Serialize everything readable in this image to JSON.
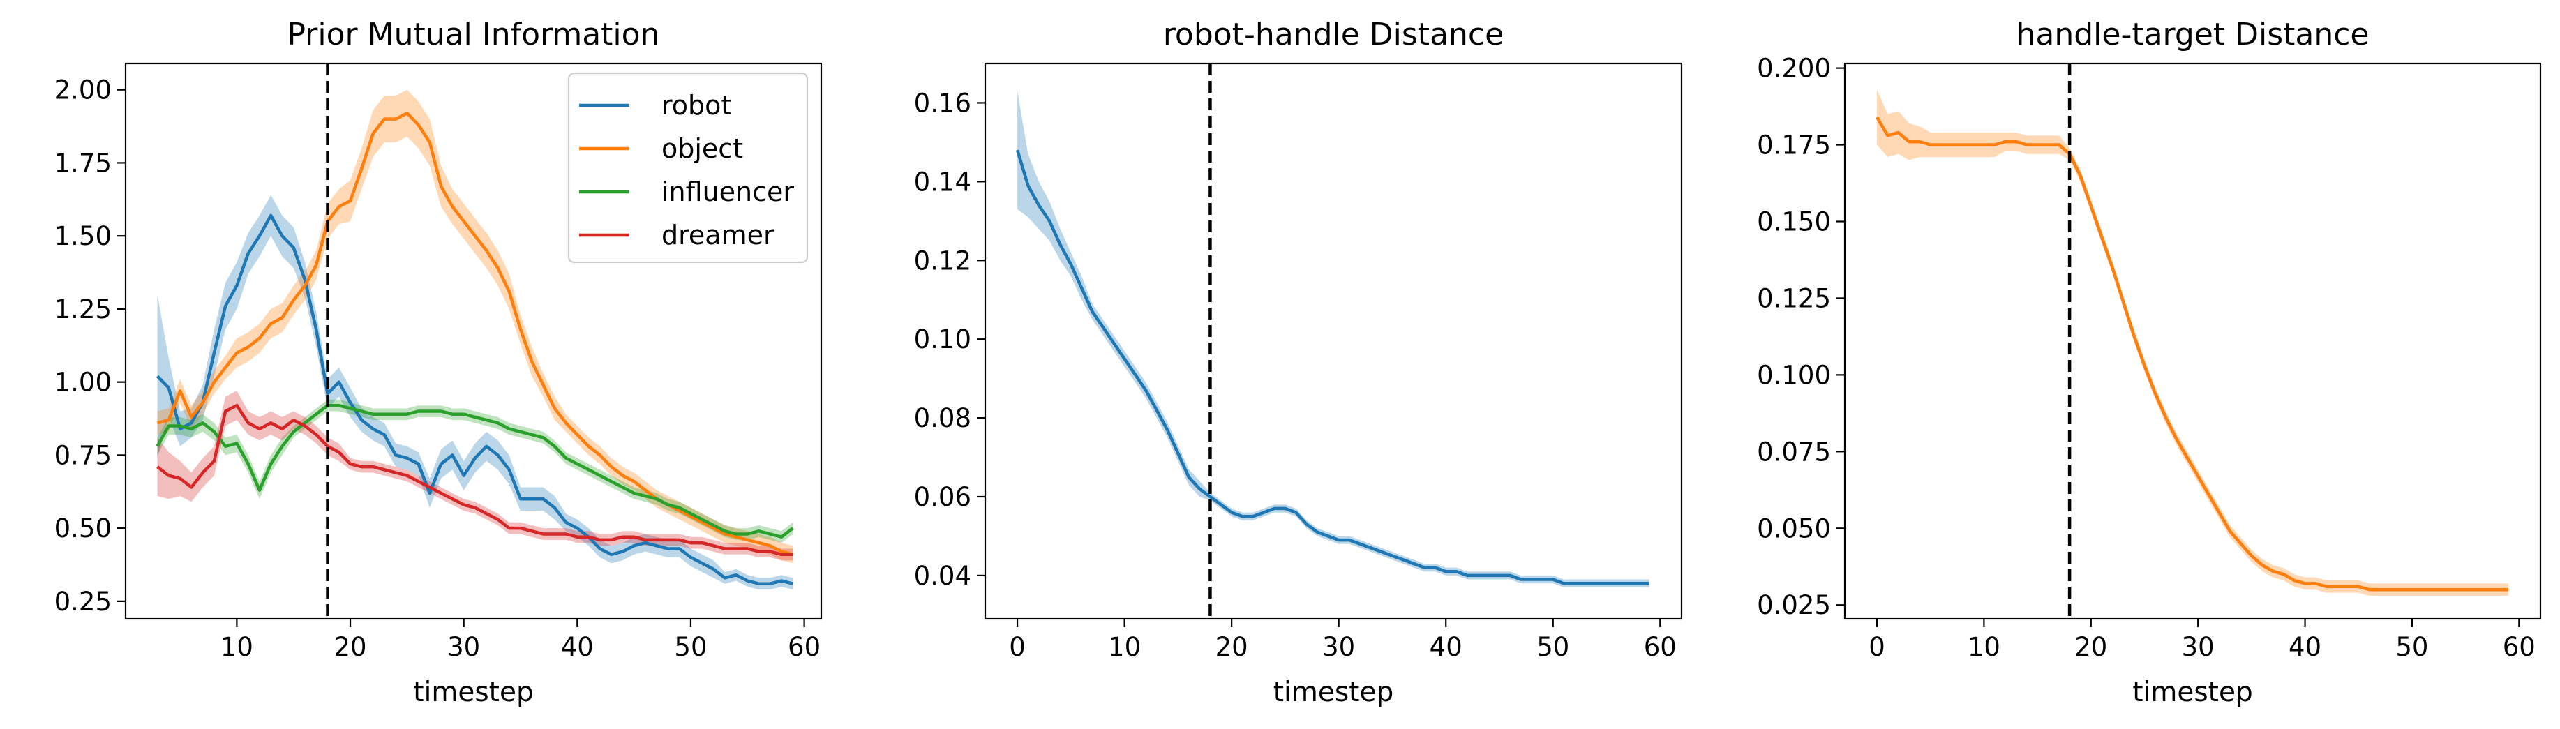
{
  "chart_data": [
    {
      "type": "line",
      "title": "Prior Mutual Information",
      "xlabel": "timestep",
      "ylabel": "",
      "xlim": [
        0.2,
        61.5
      ],
      "ylim": [
        0.19,
        2.09
      ],
      "xticks": [
        10,
        20,
        30,
        40,
        50,
        60
      ],
      "yticks": [
        0.25,
        0.5,
        0.75,
        1.0,
        1.25,
        1.5,
        1.75,
        2.0
      ],
      "ytick_labels": [
        "0.25",
        "0.50",
        "0.75",
        "1.00",
        "1.25",
        "1.50",
        "1.75",
        "2.00"
      ],
      "vline_x": 18,
      "legend": {
        "position": "top-right",
        "entries": [
          "robot",
          "object",
          "influencer",
          "dreamer"
        ]
      },
      "x": [
        3,
        4,
        5,
        6,
        7,
        8,
        9,
        10,
        11,
        12,
        13,
        14,
        15,
        16,
        17,
        18,
        19,
        20,
        21,
        22,
        23,
        24,
        25,
        26,
        27,
        28,
        29,
        30,
        31,
        32,
        33,
        34,
        35,
        36,
        37,
        38,
        39,
        40,
        41,
        42,
        43,
        44,
        45,
        46,
        47,
        48,
        49,
        50,
        51,
        52,
        53,
        54,
        55,
        56,
        57,
        58,
        59
      ],
      "series": [
        {
          "name": "robot",
          "color": "#1f77b4",
          "values": [
            1.02,
            0.98,
            0.84,
            0.86,
            0.93,
            1.1,
            1.26,
            1.33,
            1.44,
            1.5,
            1.57,
            1.5,
            1.46,
            1.35,
            1.18,
            0.96,
            1.0,
            0.93,
            0.87,
            0.84,
            0.82,
            0.75,
            0.74,
            0.72,
            0.62,
            0.72,
            0.75,
            0.68,
            0.74,
            0.78,
            0.75,
            0.7,
            0.6,
            0.6,
            0.6,
            0.57,
            0.52,
            0.5,
            0.47,
            0.43,
            0.41,
            0.42,
            0.44,
            0.45,
            0.44,
            0.43,
            0.43,
            0.4,
            0.38,
            0.36,
            0.33,
            0.34,
            0.32,
            0.31,
            0.31,
            0.32,
            0.31
          ],
          "band": [
            0.28,
            0.1,
            0.06,
            0.05,
            0.06,
            0.08,
            0.08,
            0.08,
            0.07,
            0.07,
            0.07,
            0.07,
            0.07,
            0.06,
            0.06,
            0.05,
            0.05,
            0.05,
            0.04,
            0.04,
            0.04,
            0.04,
            0.04,
            0.04,
            0.05,
            0.05,
            0.05,
            0.05,
            0.05,
            0.05,
            0.05,
            0.05,
            0.04,
            0.04,
            0.04,
            0.04,
            0.03,
            0.03,
            0.03,
            0.03,
            0.03,
            0.03,
            0.03,
            0.03,
            0.03,
            0.03,
            0.03,
            0.03,
            0.03,
            0.03,
            0.02,
            0.02,
            0.02,
            0.02,
            0.02,
            0.02,
            0.02
          ]
        },
        {
          "name": "object",
          "color": "#ff7f0e",
          "values": [
            0.86,
            0.87,
            0.97,
            0.88,
            0.93,
            1.0,
            1.05,
            1.1,
            1.12,
            1.15,
            1.2,
            1.22,
            1.28,
            1.33,
            1.4,
            1.55,
            1.6,
            1.62,
            1.73,
            1.85,
            1.9,
            1.9,
            1.92,
            1.88,
            1.82,
            1.67,
            1.6,
            1.55,
            1.5,
            1.45,
            1.39,
            1.31,
            1.18,
            1.07,
            0.99,
            0.91,
            0.86,
            0.82,
            0.78,
            0.75,
            0.71,
            0.68,
            0.66,
            0.63,
            0.6,
            0.58,
            0.56,
            0.54,
            0.52,
            0.5,
            0.48,
            0.47,
            0.46,
            0.45,
            0.44,
            0.42,
            0.41
          ],
          "band": [
            0.04,
            0.04,
            0.04,
            0.04,
            0.04,
            0.04,
            0.04,
            0.05,
            0.05,
            0.05,
            0.05,
            0.05,
            0.05,
            0.05,
            0.05,
            0.06,
            0.06,
            0.07,
            0.07,
            0.08,
            0.08,
            0.08,
            0.08,
            0.08,
            0.08,
            0.07,
            0.06,
            0.06,
            0.06,
            0.06,
            0.06,
            0.06,
            0.05,
            0.05,
            0.04,
            0.04,
            0.03,
            0.03,
            0.03,
            0.03,
            0.03,
            0.03,
            0.03,
            0.03,
            0.03,
            0.03,
            0.03,
            0.03,
            0.03,
            0.03,
            0.03,
            0.03,
            0.03,
            0.03,
            0.03,
            0.03,
            0.03
          ]
        },
        {
          "name": "influencer",
          "color": "#2ca02c",
          "values": [
            0.78,
            0.85,
            0.85,
            0.84,
            0.86,
            0.83,
            0.78,
            0.79,
            0.72,
            0.63,
            0.72,
            0.78,
            0.83,
            0.86,
            0.89,
            0.92,
            0.92,
            0.91,
            0.9,
            0.89,
            0.89,
            0.89,
            0.89,
            0.9,
            0.9,
            0.9,
            0.89,
            0.89,
            0.88,
            0.87,
            0.86,
            0.84,
            0.83,
            0.82,
            0.81,
            0.78,
            0.74,
            0.72,
            0.7,
            0.68,
            0.66,
            0.64,
            0.62,
            0.61,
            0.6,
            0.58,
            0.57,
            0.55,
            0.53,
            0.51,
            0.49,
            0.48,
            0.48,
            0.49,
            0.48,
            0.47,
            0.5
          ],
          "band": [
            0.03,
            0.03,
            0.03,
            0.03,
            0.03,
            0.03,
            0.03,
            0.03,
            0.03,
            0.03,
            0.03,
            0.03,
            0.02,
            0.02,
            0.02,
            0.02,
            0.02,
            0.02,
            0.02,
            0.02,
            0.02,
            0.02,
            0.02,
            0.02,
            0.02,
            0.02,
            0.02,
            0.02,
            0.02,
            0.02,
            0.02,
            0.02,
            0.02,
            0.02,
            0.02,
            0.02,
            0.02,
            0.02,
            0.02,
            0.02,
            0.02,
            0.02,
            0.02,
            0.02,
            0.02,
            0.02,
            0.02,
            0.02,
            0.02,
            0.02,
            0.02,
            0.02,
            0.02,
            0.02,
            0.02,
            0.02,
            0.02
          ]
        },
        {
          "name": "dreamer",
          "color": "#d62728",
          "values": [
            0.71,
            0.68,
            0.67,
            0.64,
            0.69,
            0.73,
            0.9,
            0.92,
            0.86,
            0.84,
            0.86,
            0.84,
            0.87,
            0.85,
            0.82,
            0.78,
            0.76,
            0.72,
            0.71,
            0.71,
            0.7,
            0.69,
            0.68,
            0.66,
            0.64,
            0.62,
            0.6,
            0.58,
            0.57,
            0.55,
            0.53,
            0.5,
            0.5,
            0.49,
            0.48,
            0.48,
            0.48,
            0.47,
            0.47,
            0.46,
            0.46,
            0.47,
            0.47,
            0.46,
            0.46,
            0.46,
            0.46,
            0.45,
            0.45,
            0.44,
            0.43,
            0.43,
            0.43,
            0.42,
            0.42,
            0.41,
            0.41
          ],
          "band": [
            0.1,
            0.08,
            0.06,
            0.05,
            0.05,
            0.05,
            0.05,
            0.05,
            0.04,
            0.04,
            0.04,
            0.04,
            0.03,
            0.03,
            0.03,
            0.03,
            0.03,
            0.02,
            0.02,
            0.02,
            0.02,
            0.02,
            0.02,
            0.02,
            0.02,
            0.02,
            0.02,
            0.02,
            0.02,
            0.02,
            0.02,
            0.02,
            0.02,
            0.02,
            0.02,
            0.02,
            0.02,
            0.02,
            0.02,
            0.02,
            0.02,
            0.02,
            0.02,
            0.02,
            0.02,
            0.02,
            0.02,
            0.02,
            0.02,
            0.02,
            0.02,
            0.02,
            0.02,
            0.02,
            0.02,
            0.02,
            0.02
          ]
        }
      ]
    },
    {
      "type": "line",
      "title": "robot-handle Distance",
      "xlabel": "timestep",
      "ylabel": "",
      "xlim": [
        -3,
        62
      ],
      "ylim": [
        0.029,
        0.17
      ],
      "xticks": [
        0,
        10,
        20,
        30,
        40,
        50,
        60
      ],
      "yticks": [
        0.04,
        0.06,
        0.08,
        0.1,
        0.12,
        0.14,
        0.16
      ],
      "ytick_labels": [
        "0.04",
        "0.06",
        "0.08",
        "0.10",
        "0.12",
        "0.14",
        "0.16"
      ],
      "vline_x": 18,
      "x": [
        0,
        1,
        2,
        3,
        4,
        5,
        6,
        7,
        8,
        9,
        10,
        11,
        12,
        13,
        14,
        15,
        16,
        17,
        18,
        19,
        20,
        21,
        22,
        23,
        24,
        25,
        26,
        27,
        28,
        29,
        30,
        31,
        32,
        33,
        34,
        35,
        36,
        37,
        38,
        39,
        40,
        41,
        42,
        43,
        44,
        45,
        46,
        47,
        48,
        49,
        50,
        51,
        52,
        53,
        54,
        55,
        56,
        57,
        58,
        59
      ],
      "series": [
        {
          "name": "robot",
          "color": "#1f77b4",
          "values": [
            0.148,
            0.139,
            0.134,
            0.13,
            0.124,
            0.119,
            0.113,
            0.107,
            0.103,
            0.099,
            0.095,
            0.091,
            0.087,
            0.082,
            0.077,
            0.071,
            0.065,
            0.062,
            0.06,
            0.058,
            0.056,
            0.055,
            0.055,
            0.056,
            0.057,
            0.057,
            0.056,
            0.053,
            0.051,
            0.05,
            0.049,
            0.049,
            0.048,
            0.047,
            0.046,
            0.045,
            0.044,
            0.043,
            0.042,
            0.042,
            0.041,
            0.041,
            0.04,
            0.04,
            0.04,
            0.04,
            0.04,
            0.039,
            0.039,
            0.039,
            0.039,
            0.038,
            0.038,
            0.038,
            0.038,
            0.038,
            0.038,
            0.038,
            0.038,
            0.038
          ],
          "band": [
            0.015,
            0.008,
            0.006,
            0.005,
            0.004,
            0.003,
            0.003,
            0.002,
            0.002,
            0.002,
            0.002,
            0.002,
            0.002,
            0.002,
            0.002,
            0.002,
            0.002,
            0.002,
            0.001,
            0.001,
            0.001,
            0.001,
            0.001,
            0.001,
            0.001,
            0.001,
            0.001,
            0.001,
            0.001,
            0.001,
            0.001,
            0.001,
            0.001,
            0.001,
            0.001,
            0.001,
            0.001,
            0.001,
            0.001,
            0.001,
            0.001,
            0.001,
            0.001,
            0.001,
            0.001,
            0.001,
            0.001,
            0.001,
            0.001,
            0.001,
            0.001,
            0.001,
            0.001,
            0.001,
            0.001,
            0.001,
            0.001,
            0.001,
            0.001,
            0.001
          ]
        }
      ]
    },
    {
      "type": "line",
      "title": "handle-target Distance",
      "xlabel": "timestep",
      "ylabel": "",
      "xlim": [
        -3,
        62
      ],
      "ylim": [
        0.0205,
        0.2015
      ],
      "xticks": [
        0,
        10,
        20,
        30,
        40,
        50,
        60
      ],
      "yticks": [
        0.025,
        0.05,
        0.075,
        0.1,
        0.125,
        0.15,
        0.175,
        0.2
      ],
      "ytick_labels": [
        "0.025",
        "0.050",
        "0.075",
        "0.100",
        "0.125",
        "0.150",
        "0.175",
        "0.200"
      ],
      "vline_x": 18,
      "x": [
        0,
        1,
        2,
        3,
        4,
        5,
        6,
        7,
        8,
        9,
        10,
        11,
        12,
        13,
        14,
        15,
        16,
        17,
        18,
        19,
        20,
        21,
        22,
        23,
        24,
        25,
        26,
        27,
        28,
        29,
        30,
        31,
        32,
        33,
        34,
        35,
        36,
        37,
        38,
        39,
        40,
        41,
        42,
        43,
        44,
        45,
        46,
        47,
        48,
        49,
        50,
        51,
        52,
        53,
        54,
        55,
        56,
        57,
        58,
        59
      ],
      "series": [
        {
          "name": "object",
          "color": "#ff7f0e",
          "values": [
            0.184,
            0.178,
            0.179,
            0.176,
            0.176,
            0.175,
            0.175,
            0.175,
            0.175,
            0.175,
            0.175,
            0.175,
            0.176,
            0.176,
            0.175,
            0.175,
            0.175,
            0.175,
            0.172,
            0.165,
            0.155,
            0.145,
            0.135,
            0.124,
            0.113,
            0.103,
            0.094,
            0.086,
            0.079,
            0.073,
            0.067,
            0.061,
            0.055,
            0.049,
            0.045,
            0.041,
            0.038,
            0.036,
            0.035,
            0.033,
            0.032,
            0.032,
            0.031,
            0.031,
            0.031,
            0.031,
            0.03,
            0.03,
            0.03,
            0.03,
            0.03,
            0.03,
            0.03,
            0.03,
            0.03,
            0.03,
            0.03,
            0.03,
            0.03,
            0.03
          ],
          "band": [
            0.009,
            0.007,
            0.007,
            0.006,
            0.005,
            0.004,
            0.004,
            0.004,
            0.004,
            0.004,
            0.004,
            0.004,
            0.003,
            0.003,
            0.003,
            0.003,
            0.003,
            0.003,
            0.002,
            0.002,
            0.002,
            0.002,
            0.002,
            0.002,
            0.002,
            0.002,
            0.002,
            0.002,
            0.002,
            0.002,
            0.002,
            0.002,
            0.002,
            0.002,
            0.002,
            0.002,
            0.002,
            0.002,
            0.002,
            0.002,
            0.002,
            0.002,
            0.002,
            0.002,
            0.002,
            0.002,
            0.002,
            0.002,
            0.002,
            0.002,
            0.002,
            0.002,
            0.002,
            0.002,
            0.002,
            0.002,
            0.002,
            0.002,
            0.002,
            0.002
          ]
        }
      ]
    }
  ]
}
